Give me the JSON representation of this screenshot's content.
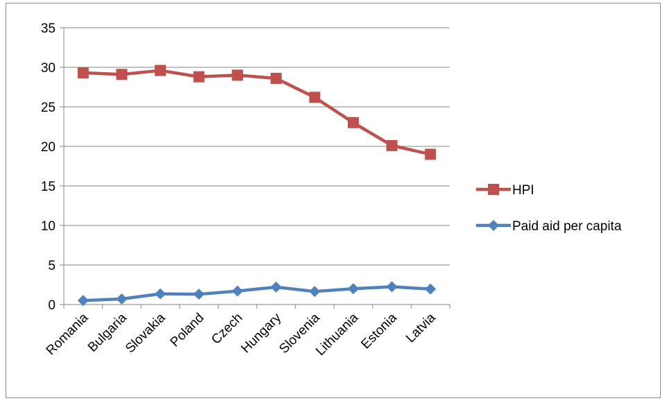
{
  "chart_data": {
    "type": "line",
    "categories": [
      "Romania",
      "Bulgaria",
      "Slovakia",
      "Poland",
      "Czech",
      "Hungary",
      "Slovenia",
      "Lithuania",
      "Estonia",
      "Latvia"
    ],
    "series": [
      {
        "name": "HPI",
        "color": "#C0504D",
        "marker": "square",
        "values": [
          29.3,
          29.1,
          29.6,
          28.8,
          29.0,
          28.6,
          26.2,
          23.0,
          20.1,
          19.0
        ]
      },
      {
        "name": "Paid aid per capita",
        "color": "#4F81BD",
        "marker": "diamond",
        "values": [
          0.5,
          0.7,
          1.35,
          1.3,
          1.7,
          2.2,
          1.65,
          2.0,
          2.25,
          1.95
        ]
      }
    ],
    "title": "",
    "xlabel": "",
    "ylabel": "",
    "ylim": [
      0,
      35
    ],
    "yticks": [
      0,
      5,
      10,
      15,
      20,
      25,
      30,
      35
    ],
    "grid": true,
    "legend": "right"
  }
}
